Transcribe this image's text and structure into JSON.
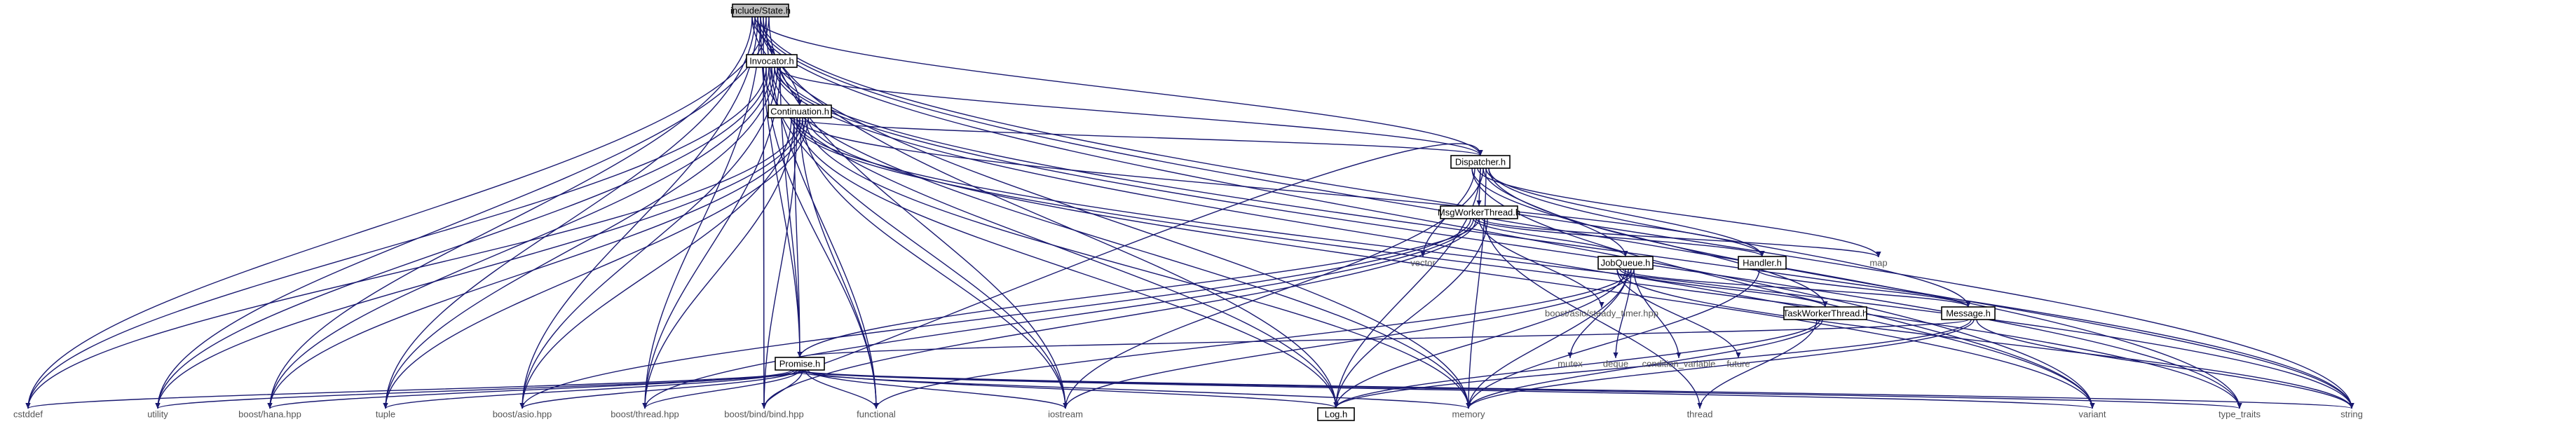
{
  "title": "include/State.h",
  "colors": {
    "edge": "#191970",
    "current_fill": "#bfbfbf",
    "box_fill": "#ffffff",
    "external_text": "#555555"
  },
  "nodes": {
    "state": "include/State.h",
    "invocator": "Invocator.h",
    "continuation": "Continuation.h",
    "dispatcher": "Dispatcher.h",
    "msgworker": "MsgWorkerThread.h",
    "jobqueue": "JobQueue.h",
    "handler": "Handler.h",
    "message": "Message.h",
    "taskworker": "TaskWorkerThread.h",
    "promise": "Promise.h",
    "log": "Log.h",
    "vector": "vector",
    "map": "map",
    "steady_timer": "boost/asio/steady_timer.hpp",
    "mutex": "mutex",
    "deque": "deque",
    "condvar": "condition_variable",
    "future": "future",
    "thread": "thread",
    "cstddef": "cstddef",
    "utility": "utility",
    "hana": "boost/hana.hpp",
    "tuple": "tuple",
    "asio": "boost/asio.hpp",
    "boost_thread": "boost/thread.hpp",
    "bind": "boost/bind/bind.hpp",
    "functional": "functional",
    "iostream": "iostream",
    "memory": "memory",
    "variant": "variant",
    "type_traits": "type_traits",
    "string": "string"
  }
}
